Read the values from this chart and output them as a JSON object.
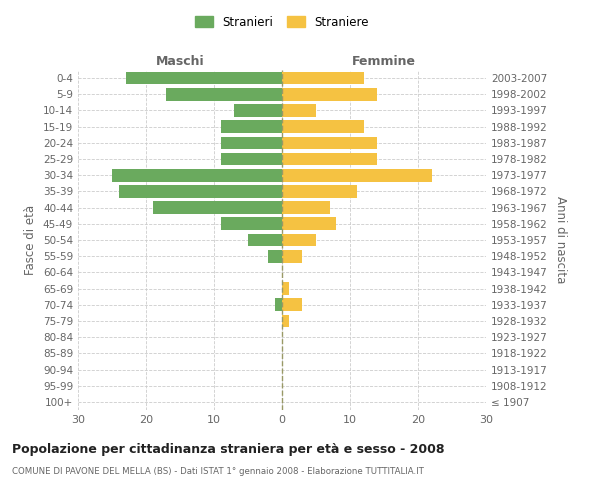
{
  "age_groups": [
    "100+",
    "95-99",
    "90-94",
    "85-89",
    "80-84",
    "75-79",
    "70-74",
    "65-69",
    "60-64",
    "55-59",
    "50-54",
    "45-49",
    "40-44",
    "35-39",
    "30-34",
    "25-29",
    "20-24",
    "15-19",
    "10-14",
    "5-9",
    "0-4"
  ],
  "birth_years": [
    "≤ 1907",
    "1908-1912",
    "1913-1917",
    "1918-1922",
    "1923-1927",
    "1928-1932",
    "1933-1937",
    "1938-1942",
    "1943-1947",
    "1948-1952",
    "1953-1957",
    "1958-1962",
    "1963-1967",
    "1968-1972",
    "1973-1977",
    "1978-1982",
    "1983-1987",
    "1988-1992",
    "1993-1997",
    "1998-2002",
    "2003-2007"
  ],
  "males": [
    0,
    0,
    0,
    0,
    0,
    0,
    1,
    0,
    0,
    2,
    5,
    9,
    19,
    24,
    25,
    9,
    9,
    9,
    7,
    17,
    23
  ],
  "females": [
    0,
    0,
    0,
    0,
    0,
    1,
    3,
    1,
    0,
    3,
    5,
    8,
    7,
    11,
    22,
    14,
    14,
    12,
    5,
    14,
    12
  ],
  "male_color": "#6aaa5e",
  "female_color": "#f5c242",
  "title": "Popolazione per cittadinanza straniera per età e sesso - 2008",
  "subtitle": "COMUNE DI PAVONE DEL MELLA (BS) - Dati ISTAT 1° gennaio 2008 - Elaborazione TUTTITALIA.IT",
  "xlabel_left": "Maschi",
  "xlabel_right": "Femmine",
  "ylabel_left": "Fasce di età",
  "ylabel_right": "Anni di nascita",
  "legend_male": "Stranieri",
  "legend_female": "Straniere",
  "xlim": 30,
  "background_color": "#ffffff",
  "grid_color": "#cccccc",
  "text_color": "#666666"
}
